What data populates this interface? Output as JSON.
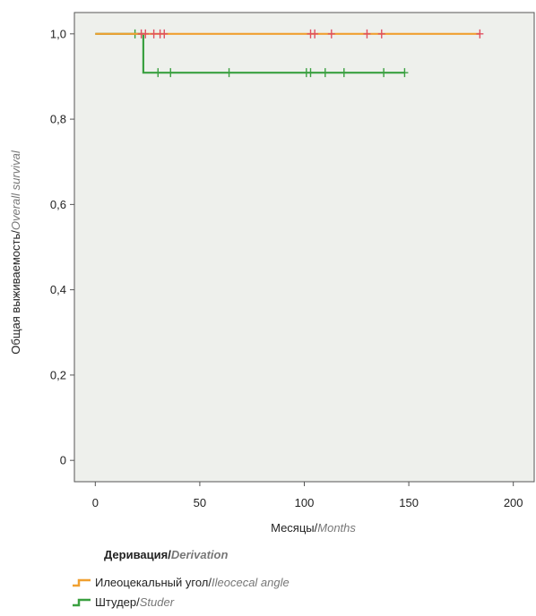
{
  "chart_data": {
    "type": "line",
    "xlabel_ru": "Месяцы",
    "xlabel_sep": "/",
    "xlabel_en": "Months",
    "ylabel_ru": "Общая выживаемость",
    "ylabel_sep": "/",
    "ylabel_en": "Overall survival",
    "xlim": [
      -10,
      210
    ],
    "ylim": [
      -0.05,
      1.05
    ],
    "x_ticks": [
      0,
      50,
      100,
      150,
      200
    ],
    "x_tick_labels": [
      "0",
      "50",
      "100",
      "150",
      "200"
    ],
    "y_ticks": [
      0,
      0.2,
      0.4,
      0.6,
      0.8,
      1.0
    ],
    "y_tick_labels": [
      "0",
      "0,2",
      "0,4",
      "0,6",
      "0,8",
      "1,0"
    ],
    "grid": false,
    "background": "#eef0ec",
    "legend_title_ru": "Деривация",
    "legend_title_sep": "/",
    "legend_title_en": "Derivation",
    "series": [
      {
        "name_ru": "Илеоцекальный угол",
        "name_sep": "/",
        "name_en": "Ileocecal angle",
        "color": "#f0a030",
        "censor_color": "#e05060",
        "steps": [
          [
            0,
            1.0
          ],
          [
            184,
            1.0
          ]
        ],
        "censored": [
          [
            22,
            1.0
          ],
          [
            24,
            1.0
          ],
          [
            28,
            1.0
          ],
          [
            31,
            1.0
          ],
          [
            33,
            1.0
          ],
          [
            103,
            1.0
          ],
          [
            105,
            1.0
          ],
          [
            113,
            1.0
          ],
          [
            130,
            1.0
          ],
          [
            137,
            1.0
          ],
          [
            184,
            1.0
          ]
        ]
      },
      {
        "name_ru": "Штудер",
        "name_sep": "/",
        "name_en": "Studer",
        "color": "#3aa040",
        "censor_color": "#3aa040",
        "steps": [
          [
            0,
            1.0
          ],
          [
            23,
            1.0
          ],
          [
            23,
            0.909
          ],
          [
            148,
            0.909
          ]
        ],
        "censored": [
          [
            19,
            1.0
          ],
          [
            30,
            0.909
          ],
          [
            36,
            0.909
          ],
          [
            64,
            0.909
          ],
          [
            101,
            0.909
          ],
          [
            103,
            0.909
          ],
          [
            110,
            0.909
          ],
          [
            119,
            0.909
          ],
          [
            138,
            0.909
          ],
          [
            148,
            0.909
          ]
        ]
      }
    ]
  }
}
